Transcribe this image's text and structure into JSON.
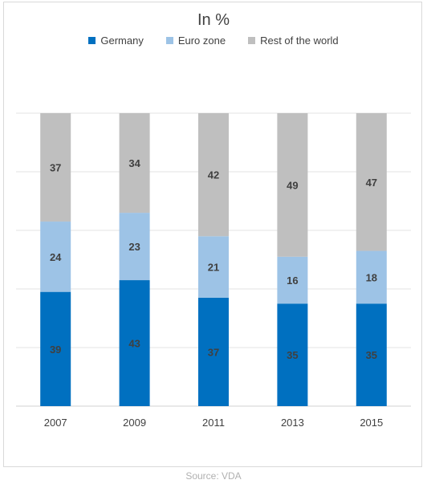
{
  "title": "In %",
  "source": "Source: VDA",
  "chart_data": {
    "type": "bar",
    "stacked": true,
    "title": "In %",
    "categories": [
      "2007",
      "2009",
      "2011",
      "2013",
      "2015"
    ],
    "series": [
      {
        "name": "Germany",
        "color": "#0070c0",
        "label_color": "#404040",
        "values": [
          39,
          43,
          37,
          35,
          35
        ]
      },
      {
        "name": "Euro zone",
        "color": "#9dc3e6",
        "label_color": "#404040",
        "values": [
          24,
          23,
          21,
          16,
          18
        ]
      },
      {
        "name": "Rest of the world",
        "color": "#bfbfbf",
        "label_color": "#404040",
        "values": [
          37,
          34,
          42,
          49,
          47
        ]
      }
    ],
    "ylim": [
      0,
      100
    ],
    "grid": true,
    "legend": "top-center"
  }
}
